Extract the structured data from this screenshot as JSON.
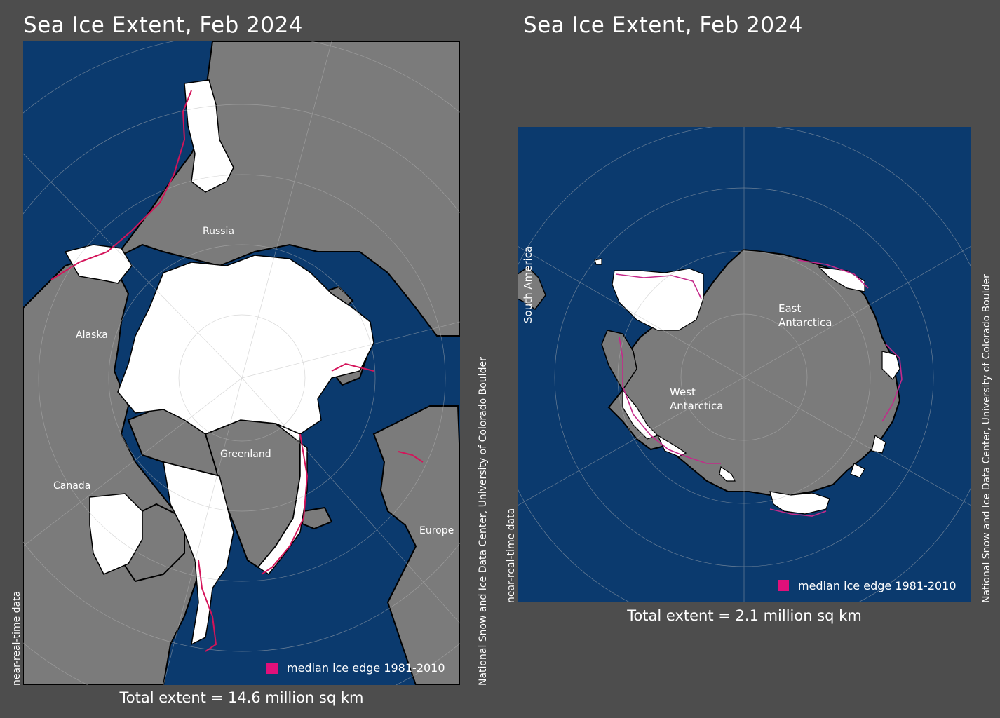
{
  "colors": {
    "background": "#4d4d4d",
    "ocean": "#0b3a6e",
    "land": "#7b7b7b",
    "ice": "#ffffff",
    "coast_outline": "#000000",
    "median_edge": "#d4145a",
    "graticule": "#b8b8b8"
  },
  "arctic": {
    "title": "Sea Ice Extent, Feb 2024",
    "total": "Total extent = 14.6 million sq km",
    "side_note": "near-real-time data",
    "legend": "median ice edge 1981-2010",
    "labels": {
      "russia": "Russia",
      "alaska": "Alaska",
      "canada": "Canada",
      "greenland": "Greenland",
      "europe": "Europe"
    }
  },
  "antarctic": {
    "title": "Sea Ice Extent, Feb 2024",
    "total": "Total extent = 2.1 million sq km",
    "side_note": "near-real-time data",
    "legend": "median ice edge 1981-2010",
    "labels": {
      "south_america": "South America",
      "east_antarctica_1": "East",
      "east_antarctica_2": "Antarctica",
      "west_antarctica_1": "West",
      "west_antarctica_2": "Antarctica"
    }
  },
  "credit": "National Snow and Ice Data Center, University of Colorado Boulder"
}
